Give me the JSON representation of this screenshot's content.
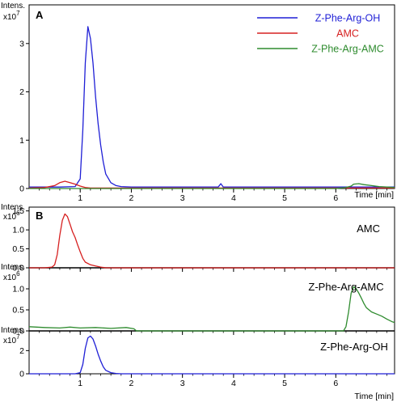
{
  "chart_data": [
    {
      "type": "line",
      "panel_label": "A",
      "y_unit": "Intens.",
      "y_multiplier": "x10",
      "y_exponent": "7",
      "x_unit": "Time [min]",
      "xlim": [
        0,
        7.15
      ],
      "ylim": [
        0,
        3.8
      ],
      "x_ticks": [
        1,
        2,
        3,
        4,
        5,
        6
      ],
      "y_ticks": [
        0,
        1,
        2,
        3
      ],
      "legend_position": "top-right",
      "series": [
        {
          "name": "Z-Phe-Arg-OH",
          "color": "#1f1fd6",
          "x": [
            0,
            0.6,
            0.9,
            1.0,
            1.05,
            1.1,
            1.15,
            1.2,
            1.25,
            1.3,
            1.35,
            1.4,
            1.45,
            1.5,
            1.6,
            1.7,
            1.8,
            2.0,
            2.5,
            3.0,
            3.7,
            3.75,
            3.8,
            4.5,
            5.5,
            6.5,
            7.15
          ],
          "y": [
            0.03,
            0.03,
            0.04,
            0.2,
            1.2,
            2.6,
            3.35,
            3.1,
            2.6,
            1.9,
            1.35,
            0.9,
            0.55,
            0.3,
            0.12,
            0.06,
            0.04,
            0.03,
            0.03,
            0.03,
            0.03,
            0.1,
            0.03,
            0.03,
            0.03,
            0.03,
            0.03
          ]
        },
        {
          "name": "AMC",
          "color": "#d62020",
          "x": [
            0,
            0.3,
            0.5,
            0.6,
            0.7,
            0.8,
            0.9,
            1.0,
            1.1,
            1.2,
            1.5,
            3.0,
            7.15
          ],
          "y": [
            0.01,
            0.02,
            0.06,
            0.12,
            0.15,
            0.12,
            0.09,
            0.05,
            0.02,
            0.01,
            0.01,
            0.01,
            0.01
          ]
        },
        {
          "name": "Z-Phe-Arg-AMC",
          "color": "#2e8b2e",
          "x": [
            0,
            1.0,
            2.0,
            3.0,
            4.0,
            5.0,
            6.0,
            6.2,
            6.3,
            6.35,
            6.45,
            6.55,
            6.7,
            6.85,
            7.0,
            7.15
          ],
          "y": [
            0.0,
            0.0,
            0.0,
            0.0,
            0.0,
            0.0,
            0.0,
            0.02,
            0.05,
            0.09,
            0.1,
            0.08,
            0.06,
            0.04,
            0.03,
            0.02
          ]
        }
      ]
    },
    {
      "type": "line",
      "panel_label": "B",
      "x_unit": "Time [min]",
      "xlim": [
        0,
        7.15
      ],
      "x_ticks": [
        1,
        2,
        3,
        4,
        5,
        6
      ],
      "subplots": [
        {
          "annotation": "AMC",
          "y_unit": "Intens.",
          "y_multiplier": "x10",
          "y_exponent": "6",
          "ylim": [
            0,
            1.6
          ],
          "y_ticks": [
            0.0,
            0.5,
            1.0,
            1.5
          ],
          "series": [
            {
              "color": "#d62020",
              "x": [
                0,
                0.3,
                0.45,
                0.5,
                0.55,
                0.6,
                0.65,
                0.7,
                0.75,
                0.8,
                0.85,
                0.9,
                0.95,
                1.0,
                1.05,
                1.1,
                1.2,
                1.3,
                1.4,
                1.5,
                7.15
              ],
              "y": [
                0.0,
                0.0,
                0.02,
                0.08,
                0.35,
                0.85,
                1.25,
                1.42,
                1.35,
                1.15,
                0.95,
                0.8,
                0.6,
                0.42,
                0.25,
                0.15,
                0.08,
                0.05,
                0.02,
                0.0,
                0.0
              ]
            }
          ]
        },
        {
          "annotation": "Z-Phe-Arg-AMC",
          "y_unit": "Intens.",
          "y_multiplier": "x10",
          "y_exponent": "6",
          "ylim": [
            0,
            1.5
          ],
          "y_ticks": [
            0.0,
            0.5,
            1.0
          ],
          "series": [
            {
              "color": "#2e8b2e",
              "x": [
                0,
                0.3,
                0.6,
                0.8,
                1.0,
                1.3,
                1.6,
                1.9,
                2.05,
                2.1,
                2.5,
                4.0,
                6.0,
                6.15,
                6.2,
                6.25,
                6.3,
                6.35,
                6.4,
                6.45,
                6.5,
                6.55,
                6.6,
                6.7,
                6.8,
                6.9,
                7.0,
                7.1,
                7.15
              ],
              "y": [
                0.1,
                0.08,
                0.07,
                0.09,
                0.07,
                0.08,
                0.06,
                0.08,
                0.05,
                0.0,
                0.0,
                0.0,
                0.0,
                0.0,
                0.1,
                0.45,
                0.9,
                1.05,
                1.0,
                0.9,
                0.78,
                0.65,
                0.55,
                0.45,
                0.4,
                0.35,
                0.28,
                0.22,
                0.2
              ]
            }
          ]
        },
        {
          "annotation": "Z-Phe-Arg-OH",
          "y_unit": "Intens.",
          "y_multiplier": "x10",
          "y_exponent": "7",
          "ylim": [
            0,
            3.7
          ],
          "y_ticks": [
            0,
            2
          ],
          "series": [
            {
              "color": "#1f1fd6",
              "x": [
                0,
                0.9,
                1.0,
                1.05,
                1.1,
                1.15,
                1.2,
                1.25,
                1.3,
                1.35,
                1.4,
                1.45,
                1.5,
                1.6,
                1.7,
                1.8,
                7.15
              ],
              "y": [
                0,
                0,
                0.1,
                0.8,
                2.2,
                3.1,
                3.25,
                3.0,
                2.4,
                1.7,
                1.1,
                0.6,
                0.3,
                0.1,
                0.03,
                0.0,
                0.0
              ]
            }
          ]
        }
      ]
    }
  ]
}
